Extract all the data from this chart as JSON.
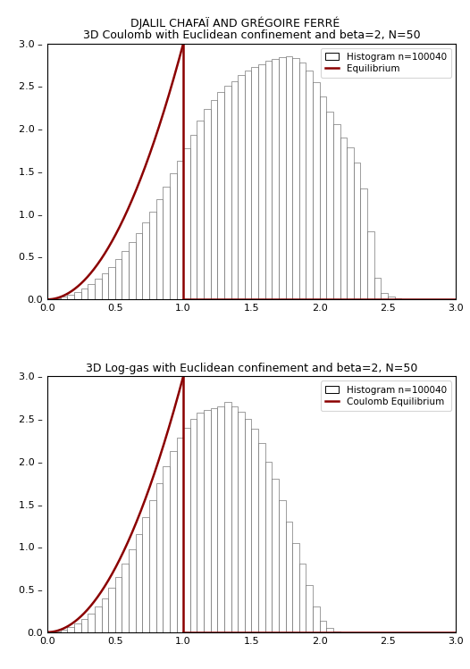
{
  "suptitle": "DJALIL CHAFAÏ AND GRÉGOIRE FERRÉ",
  "plot1_title": "3D Coulomb with Euclidean confinement and beta=2, N=50",
  "plot2_title": "3D Log-gas with Euclidean confinement and beta=2, N=50",
  "legend1_hist": "Histogram n=100040",
  "legend1_eq": "Equilibrium",
  "legend2_hist": "Histogram n=100040",
  "legend2_eq": "Coulomb Equilibrium",
  "xlim": [
    0.0,
    3.0
  ],
  "ylim": [
    0.0,
    3.0
  ],
  "xticks": [
    0.0,
    0.5,
    1.0,
    1.5,
    2.0,
    2.5,
    3.0
  ],
  "yticks": [
    0.0,
    0.5,
    1.0,
    1.5,
    2.0,
    2.5,
    3.0
  ],
  "curve_color": "#8B0000",
  "bar_facecolor": "white",
  "bar_edgecolor": "#555555",
  "curve_linewidth": 1.8,
  "hist1_heights": [
    0.0,
    0.01,
    0.03,
    0.06,
    0.09,
    0.13,
    0.18,
    0.24,
    0.31,
    0.38,
    0.47,
    0.57,
    0.67,
    0.78,
    0.9,
    1.03,
    1.17,
    1.32,
    1.48,
    1.63,
    1.77,
    1.93,
    2.1,
    2.23,
    2.34,
    2.43,
    2.5,
    2.56,
    2.63,
    2.68,
    2.72,
    2.76,
    2.8,
    2.82,
    2.84,
    2.85,
    2.83,
    2.78,
    2.68,
    2.55,
    2.38,
    2.2,
    2.05,
    1.9,
    1.78,
    1.6,
    1.3,
    0.8,
    0.25,
    0.08,
    0.03,
    0.01,
    0.0,
    0.0,
    0.0,
    0.0,
    0.0,
    0.0,
    0.0,
    0.0
  ],
  "hist2_heights": [
    0.0,
    0.01,
    0.03,
    0.06,
    0.1,
    0.15,
    0.22,
    0.3,
    0.4,
    0.52,
    0.65,
    0.8,
    0.97,
    1.15,
    1.35,
    1.55,
    1.75,
    1.95,
    2.12,
    2.28,
    2.4,
    2.5,
    2.57,
    2.6,
    2.63,
    2.65,
    2.7,
    2.65,
    2.58,
    2.5,
    2.38,
    2.22,
    2.0,
    1.8,
    1.55,
    1.3,
    1.05,
    0.8,
    0.55,
    0.3,
    0.13,
    0.05,
    0.01,
    0.0,
    0.0,
    0.0,
    0.0,
    0.0,
    0.0,
    0.0,
    0.0,
    0.0,
    0.0,
    0.0,
    0.0,
    0.0,
    0.0,
    0.0,
    0.0,
    0.0
  ],
  "bin_width": 0.05,
  "bin_start": 0.0,
  "n_bins": 60,
  "suptitle_fontsize": 9,
  "title_fontsize": 9,
  "tick_fontsize": 8,
  "legend_fontsize": 7.5
}
